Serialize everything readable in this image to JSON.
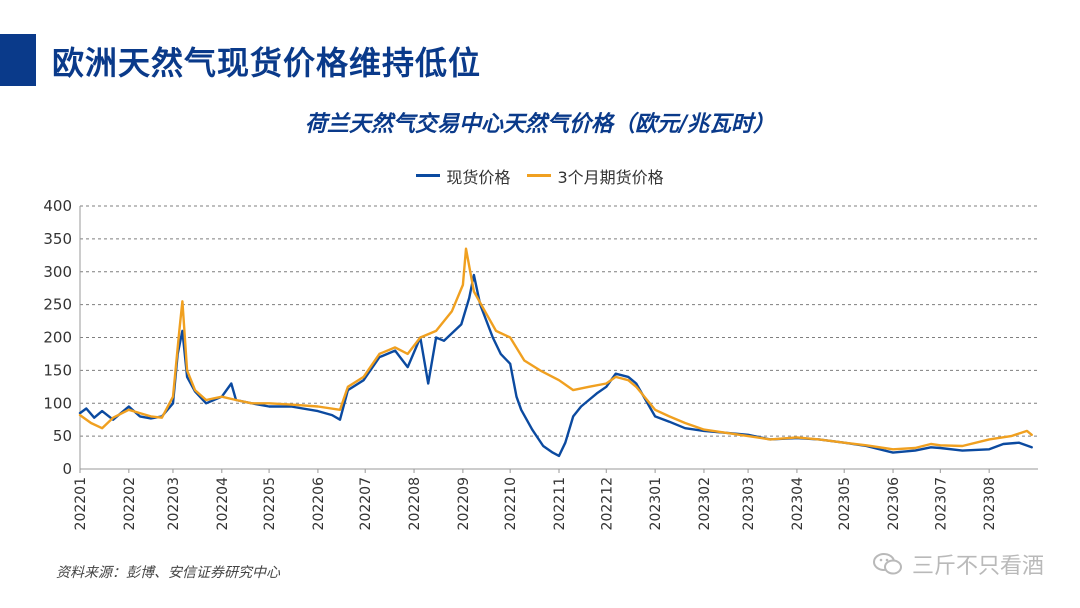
{
  "slide": {
    "title": "欧洲天然气现货价格维持低位",
    "source": "资料来源：彭博、安信证券研究中心",
    "watermark": "三斤不只看酒"
  },
  "colors": {
    "brand": "#0a3a8a",
    "spot": "#0b4aa0",
    "futures": "#f0a020",
    "grid": "#7f7f7f"
  },
  "chart_data": {
    "type": "line",
    "title": "荷兰天然气交易中心天然气价格（欧元/兆瓦时）",
    "xlabel": "",
    "ylabel": "",
    "ylim": [
      0,
      400
    ],
    "yticks": [
      0,
      50,
      100,
      150,
      200,
      250,
      300,
      350,
      400
    ],
    "xticks": [
      "202201",
      "202202",
      "202203",
      "202204",
      "202205",
      "202206",
      "202207",
      "202208",
      "202209",
      "202210",
      "202211",
      "202212",
      "202301",
      "202302",
      "202303",
      "202304",
      "202305",
      "202306",
      "202307",
      "202308"
    ],
    "x_month_range": [
      "2022-01",
      "2023-09"
    ],
    "grid": "horizontal dashed",
    "legend_position": "top-center",
    "series": [
      {
        "name": "现货价格",
        "color": "#0b4aa0",
        "points": [
          [
            "2022-01-01",
            85
          ],
          [
            "2022-01-05",
            92
          ],
          [
            "2022-01-10",
            78
          ],
          [
            "2022-01-15",
            88
          ],
          [
            "2022-01-22",
            75
          ],
          [
            "2022-02-01",
            95
          ],
          [
            "2022-02-08",
            80
          ],
          [
            "2022-02-15",
            77
          ],
          [
            "2022-02-22",
            80
          ],
          [
            "2022-03-01",
            100
          ],
          [
            "2022-03-04",
            175
          ],
          [
            "2022-03-07",
            210
          ],
          [
            "2022-03-10",
            140
          ],
          [
            "2022-03-15",
            118
          ],
          [
            "2022-03-22",
            100
          ],
          [
            "2022-04-01",
            110
          ],
          [
            "2022-04-07",
            130
          ],
          [
            "2022-04-10",
            105
          ],
          [
            "2022-04-20",
            100
          ],
          [
            "2022-05-01",
            95
          ],
          [
            "2022-05-15",
            95
          ],
          [
            "2022-06-01",
            88
          ],
          [
            "2022-06-10",
            82
          ],
          [
            "2022-06-15",
            75
          ],
          [
            "2022-06-20",
            120
          ],
          [
            "2022-06-30",
            135
          ],
          [
            "2022-07-10",
            170
          ],
          [
            "2022-07-20",
            180
          ],
          [
            "2022-07-28",
            155
          ],
          [
            "2022-08-05",
            200
          ],
          [
            "2022-08-10",
            130
          ],
          [
            "2022-08-15",
            200
          ],
          [
            "2022-08-20",
            195
          ],
          [
            "2022-08-31",
            220
          ],
          [
            "2022-09-05",
            260
          ],
          [
            "2022-09-08",
            295
          ],
          [
            "2022-09-12",
            250
          ],
          [
            "2022-09-20",
            200
          ],
          [
            "2022-09-25",
            175
          ],
          [
            "2022-10-01",
            160
          ],
          [
            "2022-10-05",
            110
          ],
          [
            "2022-10-08",
            90
          ],
          [
            "2022-10-15",
            60
          ],
          [
            "2022-10-22",
            35
          ],
          [
            "2022-10-28",
            25
          ],
          [
            "2022-11-01",
            20
          ],
          [
            "2022-11-05",
            40
          ],
          [
            "2022-11-10",
            80
          ],
          [
            "2022-11-15",
            95
          ],
          [
            "2022-11-20",
            105
          ],
          [
            "2022-11-25",
            115
          ],
          [
            "2022-12-01",
            125
          ],
          [
            "2022-12-07",
            145
          ],
          [
            "2022-12-15",
            140
          ],
          [
            "2022-12-20",
            130
          ],
          [
            "2023-01-01",
            80
          ],
          [
            "2023-01-10",
            72
          ],
          [
            "2023-01-20",
            62
          ],
          [
            "2023-02-01",
            58
          ],
          [
            "2023-02-15",
            55
          ],
          [
            "2023-03-01",
            52
          ],
          [
            "2023-03-15",
            45
          ],
          [
            "2023-04-01",
            47
          ],
          [
            "2023-04-15",
            45
          ],
          [
            "2023-05-01",
            40
          ],
          [
            "2023-05-15",
            35
          ],
          [
            "2023-06-01",
            25
          ],
          [
            "2023-06-15",
            28
          ],
          [
            "2023-06-25",
            33
          ],
          [
            "2023-07-01",
            32
          ],
          [
            "2023-07-15",
            28
          ],
          [
            "2023-08-01",
            30
          ],
          [
            "2023-08-10",
            38
          ],
          [
            "2023-08-20",
            40
          ],
          [
            "2023-08-28",
            33
          ]
        ]
      },
      {
        "name": "3个月期货价格",
        "color": "#f0a020",
        "points": [
          [
            "2022-01-01",
            82
          ],
          [
            "2022-01-08",
            70
          ],
          [
            "2022-01-15",
            62
          ],
          [
            "2022-01-22",
            78
          ],
          [
            "2022-02-01",
            90
          ],
          [
            "2022-02-08",
            85
          ],
          [
            "2022-02-15",
            80
          ],
          [
            "2022-02-22",
            78
          ],
          [
            "2022-03-01",
            110
          ],
          [
            "2022-03-05",
            210
          ],
          [
            "2022-03-07",
            255
          ],
          [
            "2022-03-10",
            150
          ],
          [
            "2022-03-15",
            120
          ],
          [
            "2022-03-22",
            105
          ],
          [
            "2022-04-01",
            110
          ],
          [
            "2022-04-10",
            105
          ],
          [
            "2022-04-20",
            100
          ],
          [
            "2022-05-01",
            100
          ],
          [
            "2022-05-15",
            98
          ],
          [
            "2022-06-01",
            95
          ],
          [
            "2022-06-15",
            90
          ],
          [
            "2022-06-20",
            125
          ],
          [
            "2022-06-30",
            140
          ],
          [
            "2022-07-10",
            175
          ],
          [
            "2022-07-20",
            185
          ],
          [
            "2022-07-28",
            175
          ],
          [
            "2022-08-05",
            200
          ],
          [
            "2022-08-15",
            210
          ],
          [
            "2022-08-25",
            240
          ],
          [
            "2022-09-01",
            280
          ],
          [
            "2022-09-03",
            335
          ],
          [
            "2022-09-08",
            270
          ],
          [
            "2022-09-15",
            240
          ],
          [
            "2022-09-22",
            210
          ],
          [
            "2022-10-01",
            200
          ],
          [
            "2022-10-10",
            165
          ],
          [
            "2022-10-20",
            150
          ],
          [
            "2022-11-01",
            135
          ],
          [
            "2022-11-10",
            120
          ],
          [
            "2022-11-20",
            125
          ],
          [
            "2022-12-01",
            130
          ],
          [
            "2022-12-07",
            140
          ],
          [
            "2022-12-15",
            135
          ],
          [
            "2022-12-20",
            125
          ],
          [
            "2023-01-01",
            90
          ],
          [
            "2023-01-10",
            80
          ],
          [
            "2023-01-20",
            70
          ],
          [
            "2023-02-01",
            60
          ],
          [
            "2023-02-15",
            55
          ],
          [
            "2023-03-01",
            50
          ],
          [
            "2023-03-15",
            45
          ],
          [
            "2023-04-01",
            48
          ],
          [
            "2023-04-15",
            45
          ],
          [
            "2023-05-01",
            40
          ],
          [
            "2023-05-15",
            36
          ],
          [
            "2023-06-01",
            30
          ],
          [
            "2023-06-15",
            32
          ],
          [
            "2023-06-25",
            38
          ],
          [
            "2023-07-01",
            36
          ],
          [
            "2023-07-15",
            35
          ],
          [
            "2023-08-01",
            45
          ],
          [
            "2023-08-15",
            50
          ],
          [
            "2023-08-25",
            58
          ],
          [
            "2023-08-28",
            52
          ]
        ]
      }
    ]
  }
}
